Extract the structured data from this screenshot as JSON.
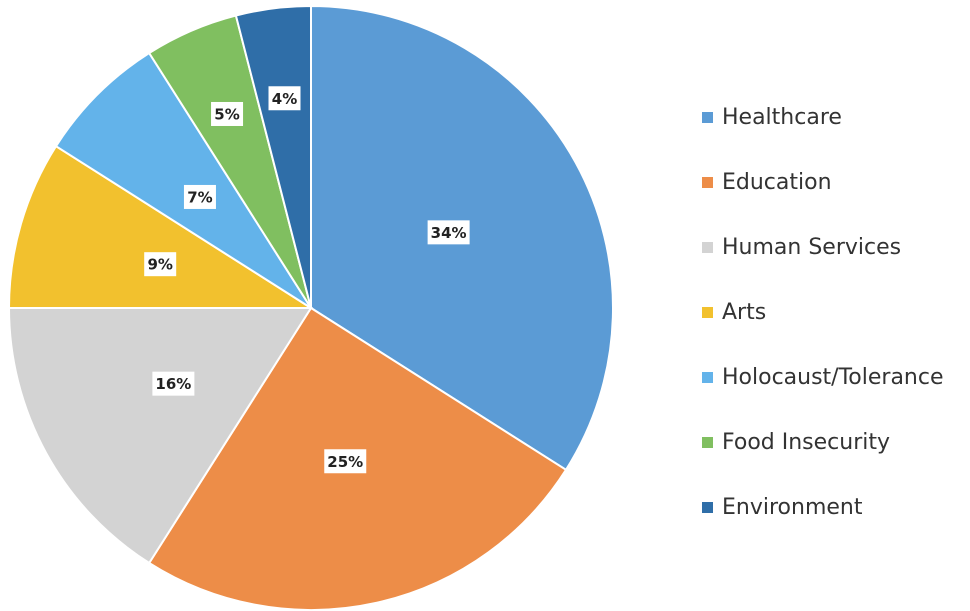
{
  "chart_data": {
    "type": "pie",
    "categories": [
      "Healthcare",
      "Education",
      "Human Services",
      "Arts",
      "Holocaust/Tolerance",
      "Food Insecurity",
      "Environment"
    ],
    "values": [
      34,
      25,
      16,
      9,
      7,
      5,
      4
    ],
    "value_labels": [
      "34%",
      "25%",
      "16%",
      "9%",
      "7%",
      "5%",
      "4%"
    ],
    "colors": [
      "#5b9bd5",
      "#ed8d48",
      "#d3d3d3",
      "#f2c12e",
      "#63b3ea",
      "#80bf60",
      "#2f6ea8"
    ],
    "legend": "right"
  }
}
